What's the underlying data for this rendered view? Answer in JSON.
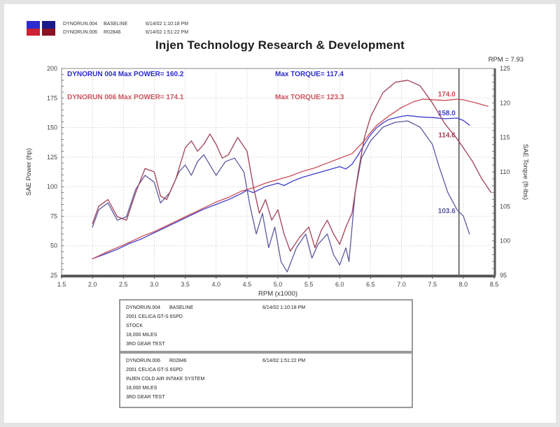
{
  "header": {
    "title": "Injen Technology Research & Development",
    "rpm_readout": "RPM = 7.93",
    "legend_runs": [
      {
        "name": "DYNORUN.004",
        "tag": "BASELINE",
        "datetime": "6/14/02 1:10:18 PM",
        "swatch_top": "#2b2bd0",
        "swatch_bottom": "#cc2233"
      },
      {
        "name": "DYNORUN.006",
        "tag": "R02846",
        "datetime": "6/14/02 1:51:22 PM",
        "swatch_top": "#1a1a8c",
        "swatch_bottom": "#8c1122"
      }
    ]
  },
  "chart_data": {
    "type": "line",
    "title": "Injen Technology Research & Development",
    "xlabel": "RPM (x1000)",
    "ylabel_left": "SAE Power (hp)",
    "ylabel_right": "SAE Torque (ft-lbs)",
    "xlim": [
      1.5,
      8.5
    ],
    "xstep": 0.5,
    "ylim_left": [
      25,
      200
    ],
    "ystep_left": 25,
    "ylim_right": [
      95,
      125
    ],
    "ystep_right": 5,
    "grid": true,
    "legend_position": "top-left",
    "cursor_rpm": 7.93,
    "annotations": [
      {
        "left_text": "DYNORUN 004  Max POWER= 160.2",
        "torque_text": "Max TORQUE= 117.4",
        "color": "#2b2bd0"
      },
      {
        "left_text": "DYNORUN 006  Max POWER= 174.1",
        "torque_text": "Max TORQUE= 123.3",
        "color": "#cd5560"
      }
    ],
    "series": [
      {
        "name": "DYNORUN.004 SAE Power",
        "axis": "left",
        "color": "#3c3cc8",
        "label": {
          "text": "158.0",
          "value": 158.0
        },
        "x": [
          2.0,
          2.2,
          2.4,
          2.6,
          2.8,
          3.0,
          3.2,
          3.4,
          3.6,
          3.8,
          4.0,
          4.2,
          4.4,
          4.5,
          4.6,
          4.8,
          5.0,
          5.1,
          5.25,
          5.4,
          5.6,
          5.8,
          6.0,
          6.1,
          6.2,
          6.3,
          6.4,
          6.5,
          6.6,
          6.7,
          6.8,
          7.0,
          7.1,
          7.3,
          7.5,
          7.7,
          7.9,
          8.0,
          8.1
        ],
        "y": [
          39,
          43,
          47,
          52,
          56,
          61,
          66,
          71,
          76,
          81,
          85,
          89,
          94,
          97,
          95,
          100,
          103,
          101,
          105,
          108,
          111,
          114,
          117,
          115,
          119,
          127,
          136,
          144,
          150,
          154,
          157,
          159.5,
          160.2,
          159,
          158.5,
          157.5,
          158,
          156,
          152
        ]
      },
      {
        "name": "DYNORUN.006 SAE Power",
        "axis": "left",
        "color": "#cc4b55",
        "label": {
          "text": "174.0",
          "value": 174.0
        },
        "x": [
          2.0,
          2.2,
          2.4,
          2.6,
          2.8,
          3.0,
          3.2,
          3.4,
          3.6,
          3.8,
          4.0,
          4.2,
          4.4,
          4.6,
          4.8,
          5.0,
          5.2,
          5.4,
          5.6,
          5.8,
          6.0,
          6.2,
          6.4,
          6.5,
          6.6,
          6.8,
          7.0,
          7.2,
          7.35,
          7.5,
          7.7,
          7.9,
          8.0,
          8.2,
          8.4
        ],
        "y": [
          39,
          44,
          48.5,
          53,
          58,
          62,
          67,
          72,
          77,
          82,
          87,
          91,
          96,
          99,
          103,
          106,
          109,
          113,
          116,
          120,
          124,
          128,
          139,
          146,
          152,
          160,
          167,
          172,
          174.1,
          173.5,
          173,
          174,
          173.5,
          171,
          168
        ]
      },
      {
        "name": "DYNORUN.004 SAE Torque",
        "axis": "right",
        "color": "#5a5aa0",
        "label": {
          "text": "103.6",
          "value": 103.6
        },
        "x": [
          2.0,
          2.1,
          2.25,
          2.4,
          2.55,
          2.7,
          2.85,
          3.0,
          3.1,
          3.25,
          3.4,
          3.5,
          3.6,
          3.7,
          3.8,
          3.9,
          4.0,
          4.15,
          4.3,
          4.45,
          4.55,
          4.65,
          4.75,
          4.85,
          4.95,
          5.05,
          5.15,
          5.3,
          5.45,
          5.55,
          5.65,
          5.8,
          5.9,
          6.0,
          6.1,
          6.15,
          6.25,
          6.35,
          6.5,
          6.7,
          6.9,
          7.1,
          7.3,
          7.5,
          7.6,
          7.75,
          7.9,
          8.0,
          8.1
        ],
        "y": [
          102,
          104.5,
          105.5,
          103,
          103.5,
          107.5,
          109.5,
          108.5,
          105.5,
          107,
          110,
          111,
          109.5,
          111.5,
          112.5,
          111,
          109.5,
          111.5,
          112,
          110,
          105,
          101,
          104,
          99,
          102,
          97,
          95.5,
          99,
          101,
          97.5,
          99.5,
          101,
          98,
          96.5,
          99,
          97,
          107,
          112,
          114.5,
          116.5,
          117.2,
          117.4,
          116.5,
          114,
          111,
          107,
          104.5,
          103.6,
          101
        ]
      },
      {
        "name": "DYNORUN.006 SAE Torque",
        "axis": "right",
        "color": "#a04055",
        "label": {
          "text": "114.6",
          "value": 114.6
        },
        "x": [
          2.0,
          2.1,
          2.25,
          2.4,
          2.55,
          2.7,
          2.85,
          3.0,
          3.1,
          3.2,
          3.35,
          3.5,
          3.6,
          3.7,
          3.8,
          3.9,
          4.0,
          4.1,
          4.2,
          4.35,
          4.5,
          4.6,
          4.7,
          4.8,
          4.9,
          5.0,
          5.1,
          5.2,
          5.35,
          5.5,
          5.6,
          5.7,
          5.8,
          5.9,
          6.0,
          6.1,
          6.2,
          6.3,
          6.4,
          6.5,
          6.7,
          6.9,
          7.1,
          7.3,
          7.5,
          7.7,
          7.9,
          8.0,
          8.15,
          8.3,
          8.45
        ],
        "y": [
          102.5,
          105,
          106,
          103.5,
          103,
          107,
          110.5,
          110,
          106.5,
          106,
          109,
          113.5,
          114.5,
          113,
          114,
          115.5,
          114,
          112,
          112.5,
          115,
          113,
          108,
          104,
          106,
          103,
          104.5,
          101,
          98.5,
          100.5,
          102,
          99,
          101.5,
          103,
          101,
          99.5,
          102,
          104,
          110,
          115,
          118,
          121.5,
          123,
          123.3,
          122.5,
          120,
          117,
          114.8,
          113.5,
          111.5,
          109,
          107
        ]
      }
    ]
  },
  "info_boxes": [
    {
      "run": "DYNORUN.004",
      "tag": "BASELINE",
      "datetime": "6/14/02 1:10:18 PM",
      "lines": [
        "2001 CELICA GT-S 6SPD",
        "STOCK",
        "18,000 MILES",
        "3RD GEAR TEST"
      ]
    },
    {
      "run": "DYNORUN.006",
      "tag": "R02846",
      "datetime": "6/14/02 1:51:22 PM",
      "lines": [
        "2001 CELICA GT-S 6SPD",
        "INJEN COLD AIR INTAKE SYSTEM",
        "18,000 MILES",
        "3RD GEAR TEST"
      ]
    }
  ]
}
